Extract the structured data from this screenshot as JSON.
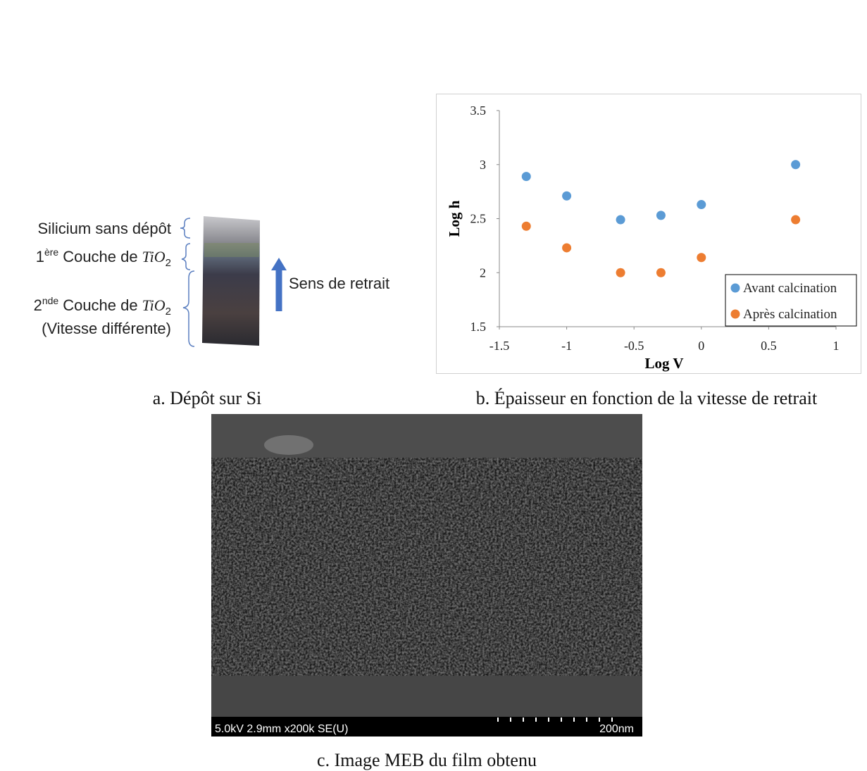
{
  "panel_a": {
    "labels": [
      {
        "text": "Silicium sans dépôt"
      },
      {
        "prefix": "1",
        "sup": "ère",
        "text": "Couche de",
        "formula": "TiO",
        "sub": "2"
      },
      {
        "prefix": "2",
        "sup": "nde",
        "text": "Couche de",
        "formula": "TiO",
        "sub": "2",
        "note": "(Vitesse différente)"
      }
    ],
    "arrow_label": "Sens de retrait",
    "caption": "a. Dépôt sur Si"
  },
  "chart_data": {
    "type": "scatter",
    "caption": "b. Épaisseur en fonction de la vitesse de retrait",
    "x_label": "Log V",
    "y_label": "Log h",
    "x": [
      -1.3,
      -1,
      -0.6,
      -0.3,
      0,
      0.7
    ],
    "series": [
      {
        "name": "Avant calcination",
        "color": "#5b9bd5",
        "values": [
          2.89,
          2.71,
          2.49,
          2.53,
          2.63,
          3.0
        ]
      },
      {
        "name": "Après calcination",
        "color": "#ed7d31",
        "values": [
          2.43,
          2.23,
          2.0,
          2.0,
          2.14,
          2.49
        ]
      }
    ],
    "xlim": [
      -1.5,
      1
    ],
    "xticks": [
      -1.5,
      -1,
      -0.5,
      0,
      0.5,
      1
    ],
    "ylim": [
      1.5,
      3.5
    ],
    "yticks": [
      1.5,
      2,
      2.5,
      3,
      3.5
    ],
    "grid": false,
    "legend": "lower right"
  },
  "panel_c": {
    "info": "5.0kV 2.9mm x200k SE(U)",
    "scale": "200nm",
    "caption": "c. Image MEB du film obtenu"
  }
}
